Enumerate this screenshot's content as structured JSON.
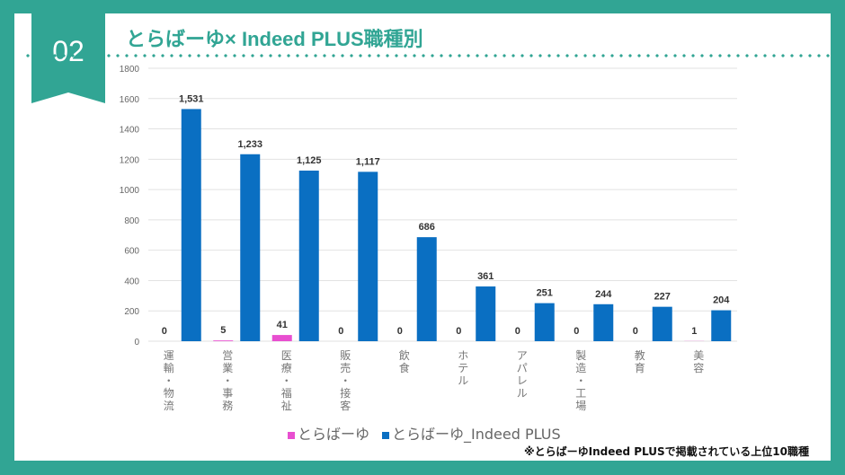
{
  "badge": "02",
  "title": "とらばーゆ× Indeed PLUS職種別",
  "note": "※とらばーゆIndeed PLUSで掲載されている上位10職種",
  "chart_data": {
    "type": "bar",
    "categories": [
      "運輸・物流",
      "営業・事務",
      "医療・福祉",
      "販売・接客",
      "飲食",
      "ホテル",
      "アパレル",
      "製造・工場",
      "教育",
      "美容"
    ],
    "series": [
      {
        "name": "とらばーゆ",
        "color": "#e84fd0",
        "values": [
          0,
          5,
          41,
          0,
          0,
          0,
          0,
          0,
          0,
          1
        ],
        "labels": [
          "0",
          "5",
          "41",
          "0",
          "0",
          "0",
          "0",
          "0",
          "0",
          "1"
        ]
      },
      {
        "name": "とらばーゆ_Indeed PLUS",
        "color": "#0a6fc2",
        "values": [
          1531,
          1233,
          1125,
          1117,
          686,
          361,
          251,
          244,
          227,
          204
        ],
        "labels": [
          "1,531",
          "1,233",
          "1,125",
          "1,117",
          "686",
          "361",
          "251",
          "244",
          "227",
          "204"
        ]
      }
    ],
    "yticks": [
      "0",
      "200",
      "400",
      "600",
      "800",
      "1000",
      "1200",
      "1400",
      "1600",
      "1800"
    ],
    "ylim": [
      0,
      1800
    ],
    "grid": true,
    "legend": "bottom"
  }
}
